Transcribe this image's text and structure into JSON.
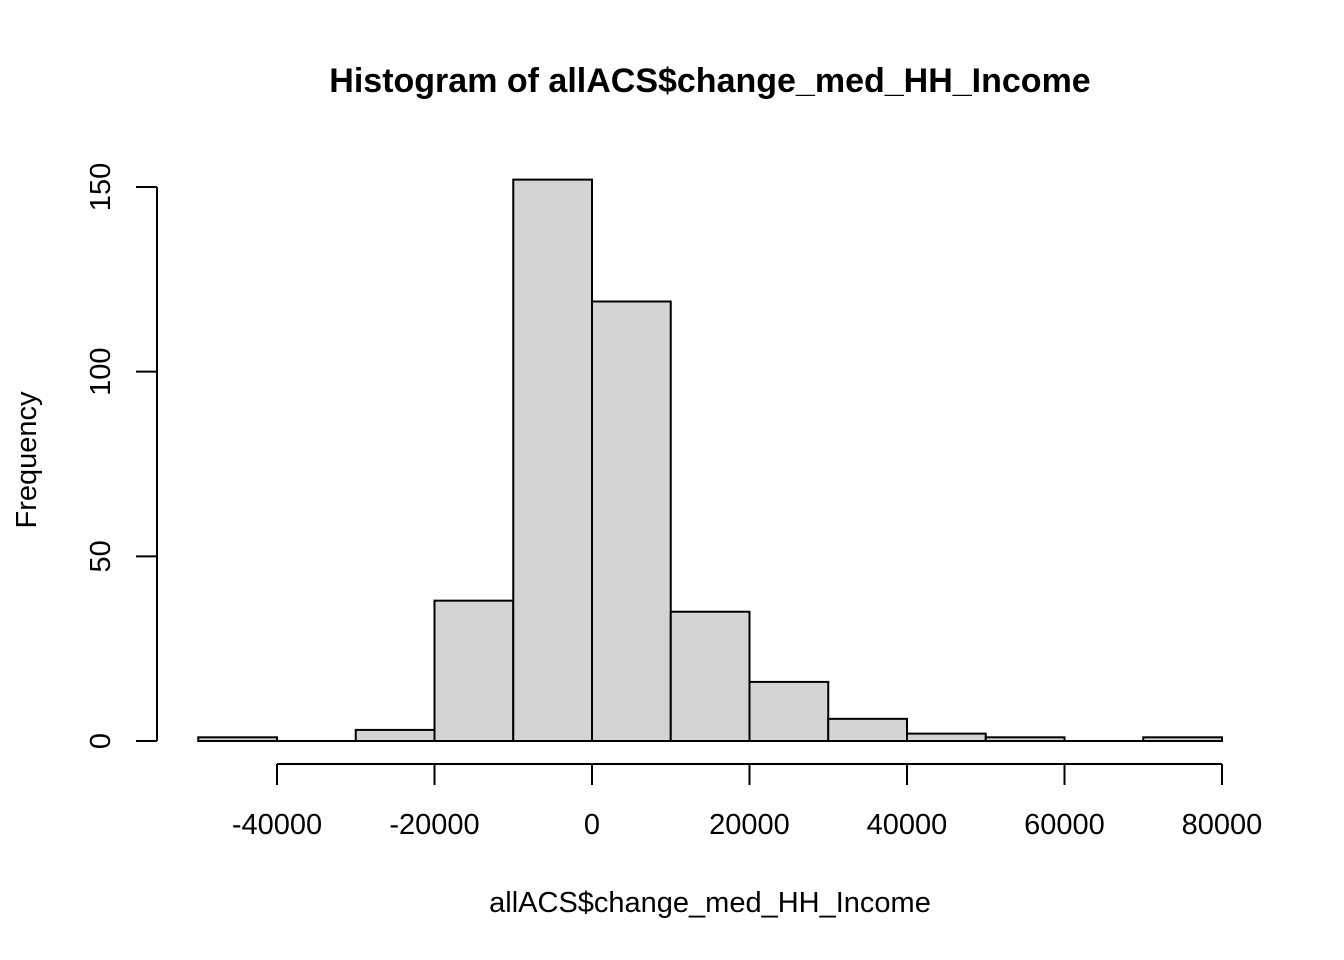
{
  "chart_data": {
    "type": "bar",
    "title": "Histogram of allACS$change_med_HH_Income",
    "xlabel": "allACS$change_med_HH_Income",
    "ylabel": "Frequency",
    "xlim": [
      -50000,
      80000
    ],
    "ylim": [
      0,
      152
    ],
    "x_ticks": [
      -40000,
      -20000,
      0,
      20000,
      40000,
      60000,
      80000
    ],
    "x_tick_labels": [
      "-40000",
      "-20000",
      "0",
      "20000",
      "40000",
      "60000",
      "80000"
    ],
    "y_ticks": [
      0,
      50,
      100,
      150
    ],
    "y_tick_labels": [
      "0",
      "50",
      "100",
      "150"
    ],
    "grid": false,
    "bins": [
      {
        "start": -50000,
        "end": -40000,
        "count": 1
      },
      {
        "start": -40000,
        "end": -30000,
        "count": 0
      },
      {
        "start": -30000,
        "end": -20000,
        "count": 3
      },
      {
        "start": -20000,
        "end": -10000,
        "count": 38
      },
      {
        "start": -10000,
        "end": 0,
        "count": 152
      },
      {
        "start": 0,
        "end": 10000,
        "count": 119
      },
      {
        "start": 10000,
        "end": 20000,
        "count": 35
      },
      {
        "start": 20000,
        "end": 30000,
        "count": 16
      },
      {
        "start": 30000,
        "end": 40000,
        "count": 6
      },
      {
        "start": 40000,
        "end": 50000,
        "count": 2
      },
      {
        "start": 50000,
        "end": 60000,
        "count": 1
      },
      {
        "start": 60000,
        "end": 70000,
        "count": 0
      },
      {
        "start": 70000,
        "end": 80000,
        "count": 1
      }
    ],
    "colors": {
      "bar_fill": "#d3d3d3",
      "bar_stroke": "#000000"
    }
  }
}
